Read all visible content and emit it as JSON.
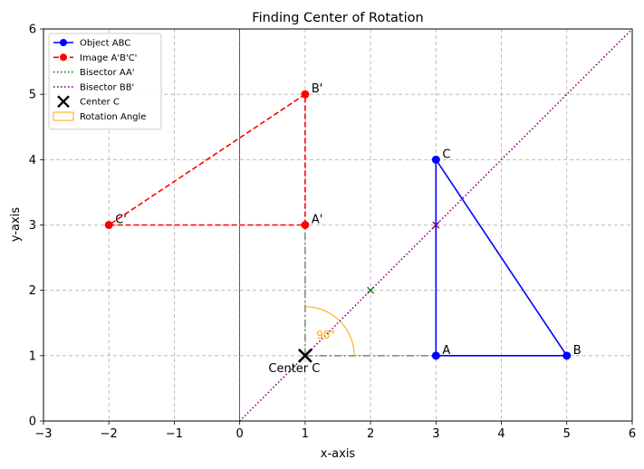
{
  "chart_data": {
    "type": "line",
    "title": "Finding Center of Rotation",
    "xlabel": "x-axis",
    "ylabel": "y-axis",
    "xlim": [
      -3,
      6
    ],
    "ylim": [
      0,
      6
    ],
    "xticks": [
      -3,
      -2,
      -1,
      0,
      1,
      2,
      3,
      4,
      5,
      6
    ],
    "yticks": [
      0,
      1,
      2,
      3,
      4,
      5,
      6
    ],
    "grid": true,
    "legend_position": "top-left",
    "series": [
      {
        "name": "Object ABC",
        "color": "#0000ff",
        "dash": "solid",
        "marker": "circle",
        "points": [
          [
            3,
            1
          ],
          [
            5,
            1
          ],
          [
            3,
            4
          ],
          [
            3,
            1
          ]
        ],
        "labels": [
          {
            "text": "A",
            "x": 3,
            "y": 1
          },
          {
            "text": "B",
            "x": 5,
            "y": 1
          },
          {
            "text": "C",
            "x": 3,
            "y": 4
          }
        ]
      },
      {
        "name": "Image A'B'C'",
        "color": "#ff0000",
        "dash": "dashed",
        "marker": "circle",
        "points": [
          [
            1,
            3
          ],
          [
            1,
            5
          ],
          [
            -2,
            3
          ],
          [
            1,
            3
          ]
        ],
        "labels": [
          {
            "text": "A'",
            "x": 1,
            "y": 3
          },
          {
            "text": "B'",
            "x": 1,
            "y": 5
          },
          {
            "text": "C'",
            "x": -2,
            "y": 3
          }
        ]
      },
      {
        "name": "Bisector AA'",
        "color": "#008000",
        "dash": "dotted",
        "marker": "x",
        "points": [],
        "midpoint": [
          2,
          2
        ]
      },
      {
        "name": "Bisector BB'",
        "color": "#800080",
        "dash": "dotted",
        "marker": "x",
        "points": [
          [
            0,
            0
          ],
          [
            6,
            6
          ]
        ],
        "midpoint": [
          3,
          3
        ]
      }
    ],
    "center": {
      "name": "Center C",
      "label": "Center C",
      "x": 1,
      "y": 1
    },
    "connectors": [
      [
        [
          1,
          1
        ],
        [
          1,
          3
        ]
      ],
      [
        [
          1,
          1
        ],
        [
          3,
          1
        ]
      ]
    ],
    "rotation_angle": {
      "name": "Rotation Angle",
      "label": "90°",
      "color": "#ffa500",
      "radius": 0.75,
      "from_deg": 0,
      "to_deg": 90
    }
  }
}
